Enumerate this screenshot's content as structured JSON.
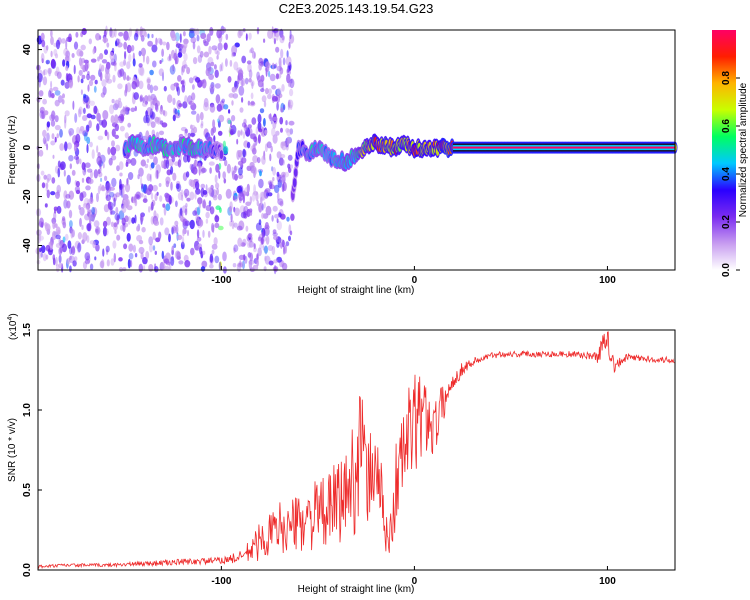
{
  "title": "C2E3.2025.143.19.54.G23",
  "chart_data": [
    {
      "type": "heatmap",
      "xlabel": "Height of straight line (km)",
      "ylabel": "Frequency (Hz)",
      "xlim": [
        -195,
        135
      ],
      "ylim": [
        -50,
        48
      ],
      "x_ticks": [
        -100,
        0,
        100
      ],
      "y_ticks": [
        -40,
        -20,
        0,
        20,
        40
      ],
      "grid": false,
      "colorbar": {
        "label": "Normalized spectral amplitude",
        "range": [
          0,
          1
        ],
        "ticks": [
          0.0,
          0.2,
          0.4,
          0.6,
          0.8
        ],
        "colors": [
          "#ffffff",
          "#c79cf0",
          "#7b2cf0",
          "#2a00ff",
          "#00c8ff",
          "#00ff60",
          "#c8ff00",
          "#ffb400",
          "#ff1e00",
          "#ff0064"
        ]
      },
      "noise_region_x": [
        -195,
        -63
      ],
      "signal_x": [
        -150,
        -145,
        -140,
        -135,
        -130,
        -125,
        -120,
        -115,
        -110,
        -105,
        -100,
        -90,
        -70,
        -63,
        -60,
        -55,
        -50,
        -45,
        -40,
        -35,
        -30,
        -25,
        -20,
        -15,
        -10,
        -5,
        0,
        5,
        10,
        15,
        20,
        50,
        100,
        135
      ],
      "signal_freq": [
        0,
        2,
        0,
        1,
        0,
        -1,
        1,
        0,
        -1,
        0,
        -2,
        0,
        0,
        -20,
        0,
        -2,
        0,
        -3,
        -5,
        -6,
        -3,
        0,
        2,
        1,
        0,
        1,
        0,
        -1,
        0,
        0,
        0,
        0,
        0,
        0
      ],
      "signal_amp": [
        0.5,
        0.6,
        0.5,
        0.55,
        0.6,
        0.5,
        0.55,
        0.6,
        0.5,
        0.5,
        0.3,
        0.1,
        0.1,
        0.3,
        0.4,
        0.5,
        0.55,
        0.5,
        0.55,
        0.6,
        0.6,
        0.8,
        0.9,
        0.85,
        0.9,
        0.85,
        0.95,
        0.9,
        0.9,
        1.0,
        1.0,
        1.0,
        1.0,
        1.0
      ]
    },
    {
      "type": "line",
      "xlabel": "Height of straight line (km)",
      "ylabel": "SNR (10 * v/v)",
      "y_multiplier_label": "(x10",
      "y_multiplier_exp": "4",
      "xlim": [
        -195,
        135
      ],
      "ylim": [
        0,
        1.5
      ],
      "x_ticks": [
        -100,
        0,
        100
      ],
      "y_ticks": [
        "0.0",
        "0.5",
        "1.0",
        "1.5"
      ],
      "grid": false,
      "series": [
        {
          "color": "#ee2b2b",
          "x": [
            -195,
            -180,
            -160,
            -140,
            -120,
            -100,
            -90,
            -85,
            -80,
            -75,
            -70,
            -65,
            -60,
            -55,
            -50,
            -45,
            -40,
            -35,
            -30,
            -28,
            -25,
            -22,
            -20,
            -17,
            -15,
            -12,
            -10,
            -8,
            -5,
            -2,
            0,
            2,
            5,
            8,
            10,
            12,
            15,
            18,
            20,
            25,
            30,
            35,
            40,
            45,
            50,
            60,
            70,
            80,
            90,
            95,
            98,
            100,
            102,
            105,
            110,
            120,
            135
          ],
          "y": [
            0.02,
            0.03,
            0.03,
            0.04,
            0.05,
            0.06,
            0.08,
            0.12,
            0.18,
            0.22,
            0.27,
            0.26,
            0.3,
            0.32,
            0.35,
            0.36,
            0.42,
            0.48,
            0.62,
            0.85,
            0.55,
            0.6,
            0.7,
            0.45,
            0.2,
            0.25,
            0.5,
            0.62,
            0.75,
            0.88,
            0.9,
            0.95,
            0.96,
            0.95,
            0.88,
            0.95,
            1.05,
            1.12,
            1.18,
            1.26,
            1.3,
            1.32,
            1.34,
            1.35,
            1.35,
            1.35,
            1.35,
            1.35,
            1.34,
            1.33,
            1.42,
            1.5,
            1.3,
            1.28,
            1.33,
            1.32,
            1.31
          ],
          "amplitude": [
            0.01,
            0.01,
            0.01,
            0.015,
            0.02,
            0.02,
            0.04,
            0.08,
            0.12,
            0.14,
            0.16,
            0.16,
            0.18,
            0.2,
            0.22,
            0.22,
            0.28,
            0.32,
            0.38,
            0.4,
            0.3,
            0.28,
            0.3,
            0.22,
            0.12,
            0.15,
            0.28,
            0.32,
            0.35,
            0.36,
            0.32,
            0.3,
            0.26,
            0.22,
            0.18,
            0.16,
            0.12,
            0.08,
            0.06,
            0.04,
            0.03,
            0.02,
            0.02,
            0.02,
            0.02,
            0.02,
            0.02,
            0.02,
            0.02,
            0.04,
            0.08,
            0.1,
            0.08,
            0.04,
            0.02,
            0.02,
            0.02
          ]
        }
      ]
    }
  ]
}
